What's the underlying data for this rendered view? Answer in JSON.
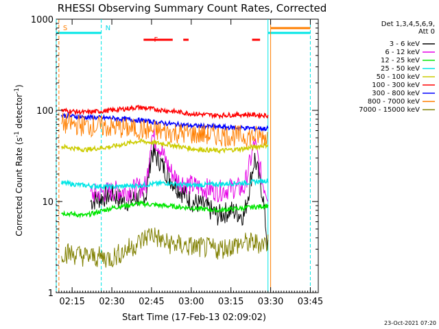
{
  "chart_data": {
    "type": "line",
    "title": "RHESSI Observing Summary Count Rates, Corrected",
    "xlabel": "Start Time (17-Feb-13 02:09:02)",
    "ylabel": "Corrected Count Rate (s⁻¹ detector⁻¹)",
    "ylabel_main": "Corrected Count Rate (s",
    "ylabel_sup1": "-1",
    "ylabel_mid": " detector",
    "ylabel_sup2": "-1",
    "ylabel_end": ")",
    "y_scale": "log",
    "ylim": [
      1,
      1000
    ],
    "xlim": [
      "02:09",
      "03:48"
    ],
    "x_ticks": [
      "02:15",
      "02:30",
      "02:45",
      "03:00",
      "03:15",
      "03:30",
      "03:45"
    ],
    "y_ticks": [
      "1",
      "10",
      "100",
      "1000"
    ],
    "legend_header": [
      "Det 1,3,4,5,6,9,",
      "Att 0"
    ],
    "legend_position": "right",
    "timestamp": "23-Oct-2021 07:20",
    "markers": [
      {
        "label": "S",
        "time": "02:10",
        "color": "#ff7f00"
      },
      {
        "label": "N",
        "time": "02:26",
        "color": "#00d7e6"
      },
      {
        "label": "F",
        "time": "02:48",
        "color": "#ff0000"
      }
    ],
    "flare_flag_intervals": [
      [
        "02:42",
        "02:53"
      ],
      [
        "02:57",
        "02:59"
      ],
      [
        "03:23",
        "03:26"
      ]
    ],
    "night_intervals": [
      [
        "02:09",
        "02:26"
      ],
      [
        "03:29",
        "03:45"
      ]
    ],
    "saa_intervals": [
      [
        "03:30",
        "03:45"
      ]
    ],
    "series": [
      {
        "name": "3 - 6 keV",
        "color": "#000000",
        "x": [
          "02:22",
          "02:30",
          "02:35",
          "02:40",
          "02:43",
          "02:45",
          "02:48",
          "02:52",
          "02:55",
          "03:00",
          "03:05",
          "03:10",
          "03:15",
          "03:20",
          "03:24",
          "03:27",
          "03:29"
        ],
        "values": [
          10,
          12,
          10,
          11,
          12,
          35,
          28,
          18,
          14,
          10,
          9,
          7,
          8,
          7,
          30,
          12,
          3
        ]
      },
      {
        "name": "6 - 12 keV",
        "color": "#e600e6",
        "x": [
          "02:22",
          "02:30",
          "02:35",
          "02:40",
          "02:43",
          "02:45",
          "02:48",
          "02:52",
          "02:55",
          "03:00",
          "03:05",
          "03:10",
          "03:15",
          "03:20",
          "03:24",
          "03:27",
          "03:29"
        ],
        "values": [
          12,
          13,
          13,
          14,
          15,
          55,
          40,
          22,
          17,
          15,
          14,
          13,
          14,
          14,
          45,
          16,
          12
        ]
      },
      {
        "name": "12 - 25 keV",
        "color": "#00e600",
        "x": [
          "02:11",
          "02:20",
          "02:30",
          "02:40",
          "02:50",
          "03:00",
          "03:10",
          "03:20",
          "03:29"
        ],
        "values": [
          7.5,
          7,
          8.5,
          9.5,
          9,
          8.5,
          8,
          8.5,
          9
        ]
      },
      {
        "name": "25 - 50 keV",
        "color": "#00e6e6",
        "x": [
          "02:11",
          "02:20",
          "02:30",
          "02:40",
          "02:50",
          "03:00",
          "03:10",
          "03:20",
          "03:29"
        ],
        "values": [
          16,
          15,
          14.5,
          15,
          16,
          15,
          15.5,
          16,
          17
        ]
      },
      {
        "name": "50 - 100 keV",
        "color": "#cccc00",
        "x": [
          "02:11",
          "02:20",
          "02:30",
          "02:40",
          "02:50",
          "03:00",
          "03:10",
          "03:20",
          "03:29"
        ],
        "values": [
          40,
          37,
          40,
          46,
          43,
          38,
          36,
          38,
          42
        ]
      },
      {
        "name": "100 - 300 keV",
        "color": "#ff0000",
        "x": [
          "02:11",
          "02:20",
          "02:30",
          "02:40",
          "02:50",
          "03:00",
          "03:10",
          "03:20",
          "03:29"
        ],
        "values": [
          100,
          95,
          100,
          108,
          100,
          92,
          88,
          90,
          88
        ]
      },
      {
        "name": "300 - 800 keV",
        "color": "#0000ff",
        "x": [
          "02:11",
          "02:20",
          "02:30",
          "02:40",
          "02:50",
          "03:00",
          "03:10",
          "03:20",
          "03:29"
        ],
        "values": [
          88,
          84,
          82,
          78,
          72,
          68,
          66,
          64,
          63
        ]
      },
      {
        "name": "800 - 7000 keV",
        "color": "#ff7f00",
        "x": [
          "02:11",
          "02:20",
          "02:30",
          "02:40",
          "02:50",
          "03:00",
          "03:10",
          "03:20",
          "03:29"
        ],
        "values": [
          72,
          68,
          65,
          62,
          58,
          55,
          53,
          52,
          52
        ]
      },
      {
        "name": "7000 - 15000 keV",
        "color": "#808000",
        "x": [
          "02:11",
          "02:20",
          "02:30",
          "02:40",
          "02:45",
          "02:50",
          "03:00",
          "03:10",
          "03:20",
          "03:29"
        ],
        "values": [
          2.8,
          2.5,
          2.4,
          3.5,
          4.5,
          3.5,
          3.2,
          3,
          3.5,
          3.5
        ]
      }
    ]
  }
}
